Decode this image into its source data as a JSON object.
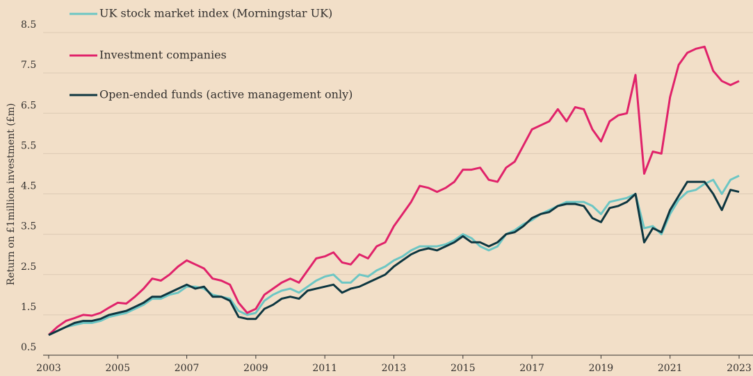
{
  "chart_data": {
    "type": "line",
    "ylabel": "Return on £1million investment (£m)",
    "x": [
      2003.0,
      2003.25,
      2003.5,
      2003.75,
      2004.0,
      2004.25,
      2004.5,
      2004.75,
      2005.0,
      2005.25,
      2005.5,
      2005.75,
      2006.0,
      2006.25,
      2006.5,
      2006.75,
      2007.0,
      2007.25,
      2007.5,
      2007.75,
      2008.0,
      2008.25,
      2008.5,
      2008.75,
      2009.0,
      2009.25,
      2009.5,
      2009.75,
      2010.0,
      2010.25,
      2010.5,
      2010.75,
      2011.0,
      2011.25,
      2011.5,
      2011.75,
      2012.0,
      2012.25,
      2012.5,
      2012.75,
      2013.0,
      2013.25,
      2013.5,
      2013.75,
      2014.0,
      2014.25,
      2014.5,
      2014.75,
      2015.0,
      2015.25,
      2015.5,
      2015.75,
      2016.0,
      2016.25,
      2016.5,
      2016.75,
      2017.0,
      2017.25,
      2017.5,
      2017.75,
      2018.0,
      2018.25,
      2018.5,
      2018.75,
      2019.0,
      2019.25,
      2019.5,
      2019.75,
      2020.0,
      2020.25,
      2020.5,
      2020.75,
      2021.0,
      2021.25,
      2021.5,
      2021.75,
      2022.0,
      2022.25,
      2022.5,
      2022.75,
      2023.0
    ],
    "series": [
      {
        "name": "UK stock market index (Morningstar UK)",
        "color": "#6cc6c4",
        "values": [
          1.0,
          1.1,
          1.2,
          1.25,
          1.3,
          1.3,
          1.35,
          1.45,
          1.5,
          1.55,
          1.65,
          1.75,
          1.9,
          1.9,
          2.0,
          2.05,
          2.2,
          2.2,
          2.15,
          2.0,
          1.95,
          1.9,
          1.6,
          1.5,
          1.55,
          1.85,
          2.0,
          2.1,
          2.15,
          2.05,
          2.2,
          2.35,
          2.45,
          2.5,
          2.3,
          2.3,
          2.5,
          2.45,
          2.6,
          2.7,
          2.85,
          2.95,
          3.1,
          3.2,
          3.2,
          3.2,
          3.25,
          3.35,
          3.5,
          3.4,
          3.2,
          3.1,
          3.2,
          3.5,
          3.6,
          3.75,
          3.85,
          4.0,
          4.1,
          4.2,
          4.3,
          4.3,
          4.3,
          4.2,
          4.0,
          4.3,
          4.35,
          4.4,
          4.5,
          3.65,
          3.7,
          3.5,
          4.0,
          4.35,
          4.55,
          4.6,
          4.75,
          4.85,
          4.5,
          4.85,
          4.95
        ]
      },
      {
        "name": "Investment companies",
        "color": "#e0226a",
        "values": [
          1.0,
          1.2,
          1.35,
          1.42,
          1.5,
          1.48,
          1.55,
          1.68,
          1.8,
          1.78,
          1.95,
          2.15,
          2.4,
          2.35,
          2.5,
          2.7,
          2.85,
          2.75,
          2.65,
          2.4,
          2.35,
          2.25,
          1.8,
          1.55,
          1.65,
          2.0,
          2.15,
          2.3,
          2.4,
          2.3,
          2.6,
          2.9,
          2.95,
          3.05,
          2.8,
          2.75,
          3.0,
          2.9,
          3.2,
          3.3,
          3.7,
          4.0,
          4.3,
          4.7,
          4.65,
          4.55,
          4.65,
          4.8,
          5.1,
          5.1,
          5.15,
          4.85,
          4.8,
          5.15,
          5.3,
          5.7,
          6.1,
          6.2,
          6.3,
          6.6,
          6.3,
          6.65,
          6.6,
          6.1,
          5.8,
          6.3,
          6.45,
          6.5,
          7.45,
          5.0,
          5.55,
          5.5,
          6.9,
          7.7,
          8.0,
          8.1,
          8.15,
          7.55,
          7.3,
          7.2,
          7.3
        ]
      },
      {
        "name": "Open-ended funds (active management only)",
        "color": "#0d3640",
        "values": [
          1.0,
          1.1,
          1.2,
          1.3,
          1.35,
          1.35,
          1.4,
          1.5,
          1.55,
          1.6,
          1.7,
          1.8,
          1.95,
          1.95,
          2.05,
          2.15,
          2.25,
          2.15,
          2.2,
          1.95,
          1.95,
          1.85,
          1.45,
          1.4,
          1.4,
          1.65,
          1.75,
          1.9,
          1.95,
          1.9,
          2.1,
          2.15,
          2.2,
          2.25,
          2.05,
          2.15,
          2.2,
          2.3,
          2.4,
          2.5,
          2.7,
          2.85,
          3.0,
          3.1,
          3.15,
          3.1,
          3.2,
          3.3,
          3.45,
          3.3,
          3.3,
          3.2,
          3.3,
          3.5,
          3.55,
          3.7,
          3.9,
          4.0,
          4.05,
          4.2,
          4.25,
          4.25,
          4.2,
          3.9,
          3.8,
          4.15,
          4.2,
          4.3,
          4.5,
          3.3,
          3.65,
          3.55,
          4.1,
          4.45,
          4.8,
          4.8,
          4.8,
          4.5,
          4.1,
          4.6,
          4.55
        ]
      }
    ],
    "xlim": [
      2003,
      2023
    ],
    "xticks": [
      2003,
      2005,
      2007,
      2009,
      2011,
      2013,
      2015,
      2017,
      2019,
      2021,
      2023
    ],
    "ylim": [
      0.5,
      8.5
    ],
    "yticks": [
      0.5,
      1.5,
      2.5,
      3.5,
      4.5,
      5.5,
      6.5,
      7.5,
      8.5
    ],
    "grid": true
  }
}
